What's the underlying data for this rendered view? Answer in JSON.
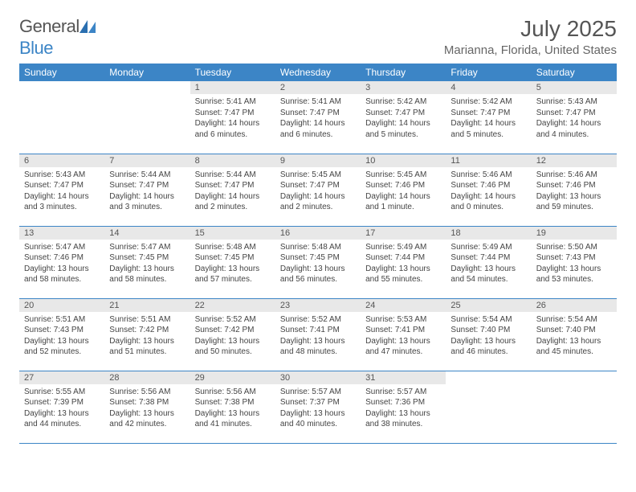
{
  "brand": {
    "part1": "General",
    "part2": "Blue"
  },
  "title": "July 2025",
  "location": "Marianna, Florida, United States",
  "colors": {
    "header_bg": "#3c85c6",
    "daynum_bg": "#e8e8e8",
    "text": "#444",
    "title": "#555"
  },
  "typography": {
    "title_fontsize": 28,
    "location_fontsize": 15,
    "dayheader_fontsize": 12,
    "body_fontsize": 10
  },
  "layout": {
    "columns": 7,
    "rows": 5
  },
  "day_labels": [
    "Sunday",
    "Monday",
    "Tuesday",
    "Wednesday",
    "Thursday",
    "Friday",
    "Saturday"
  ],
  "weeks": [
    [
      null,
      null,
      {
        "n": "1",
        "sunrise": "Sunrise: 5:41 AM",
        "sunset": "Sunset: 7:47 PM",
        "daylight": "Daylight: 14 hours and 6 minutes."
      },
      {
        "n": "2",
        "sunrise": "Sunrise: 5:41 AM",
        "sunset": "Sunset: 7:47 PM",
        "daylight": "Daylight: 14 hours and 6 minutes."
      },
      {
        "n": "3",
        "sunrise": "Sunrise: 5:42 AM",
        "sunset": "Sunset: 7:47 PM",
        "daylight": "Daylight: 14 hours and 5 minutes."
      },
      {
        "n": "4",
        "sunrise": "Sunrise: 5:42 AM",
        "sunset": "Sunset: 7:47 PM",
        "daylight": "Daylight: 14 hours and 5 minutes."
      },
      {
        "n": "5",
        "sunrise": "Sunrise: 5:43 AM",
        "sunset": "Sunset: 7:47 PM",
        "daylight": "Daylight: 14 hours and 4 minutes."
      }
    ],
    [
      {
        "n": "6",
        "sunrise": "Sunrise: 5:43 AM",
        "sunset": "Sunset: 7:47 PM",
        "daylight": "Daylight: 14 hours and 3 minutes."
      },
      {
        "n": "7",
        "sunrise": "Sunrise: 5:44 AM",
        "sunset": "Sunset: 7:47 PM",
        "daylight": "Daylight: 14 hours and 3 minutes."
      },
      {
        "n": "8",
        "sunrise": "Sunrise: 5:44 AM",
        "sunset": "Sunset: 7:47 PM",
        "daylight": "Daylight: 14 hours and 2 minutes."
      },
      {
        "n": "9",
        "sunrise": "Sunrise: 5:45 AM",
        "sunset": "Sunset: 7:47 PM",
        "daylight": "Daylight: 14 hours and 2 minutes."
      },
      {
        "n": "10",
        "sunrise": "Sunrise: 5:45 AM",
        "sunset": "Sunset: 7:46 PM",
        "daylight": "Daylight: 14 hours and 1 minute."
      },
      {
        "n": "11",
        "sunrise": "Sunrise: 5:46 AM",
        "sunset": "Sunset: 7:46 PM",
        "daylight": "Daylight: 14 hours and 0 minutes."
      },
      {
        "n": "12",
        "sunrise": "Sunrise: 5:46 AM",
        "sunset": "Sunset: 7:46 PM",
        "daylight": "Daylight: 13 hours and 59 minutes."
      }
    ],
    [
      {
        "n": "13",
        "sunrise": "Sunrise: 5:47 AM",
        "sunset": "Sunset: 7:46 PM",
        "daylight": "Daylight: 13 hours and 58 minutes."
      },
      {
        "n": "14",
        "sunrise": "Sunrise: 5:47 AM",
        "sunset": "Sunset: 7:45 PM",
        "daylight": "Daylight: 13 hours and 58 minutes."
      },
      {
        "n": "15",
        "sunrise": "Sunrise: 5:48 AM",
        "sunset": "Sunset: 7:45 PM",
        "daylight": "Daylight: 13 hours and 57 minutes."
      },
      {
        "n": "16",
        "sunrise": "Sunrise: 5:48 AM",
        "sunset": "Sunset: 7:45 PM",
        "daylight": "Daylight: 13 hours and 56 minutes."
      },
      {
        "n": "17",
        "sunrise": "Sunrise: 5:49 AM",
        "sunset": "Sunset: 7:44 PM",
        "daylight": "Daylight: 13 hours and 55 minutes."
      },
      {
        "n": "18",
        "sunrise": "Sunrise: 5:49 AM",
        "sunset": "Sunset: 7:44 PM",
        "daylight": "Daylight: 13 hours and 54 minutes."
      },
      {
        "n": "19",
        "sunrise": "Sunrise: 5:50 AM",
        "sunset": "Sunset: 7:43 PM",
        "daylight": "Daylight: 13 hours and 53 minutes."
      }
    ],
    [
      {
        "n": "20",
        "sunrise": "Sunrise: 5:51 AM",
        "sunset": "Sunset: 7:43 PM",
        "daylight": "Daylight: 13 hours and 52 minutes."
      },
      {
        "n": "21",
        "sunrise": "Sunrise: 5:51 AM",
        "sunset": "Sunset: 7:42 PM",
        "daylight": "Daylight: 13 hours and 51 minutes."
      },
      {
        "n": "22",
        "sunrise": "Sunrise: 5:52 AM",
        "sunset": "Sunset: 7:42 PM",
        "daylight": "Daylight: 13 hours and 50 minutes."
      },
      {
        "n": "23",
        "sunrise": "Sunrise: 5:52 AM",
        "sunset": "Sunset: 7:41 PM",
        "daylight": "Daylight: 13 hours and 48 minutes."
      },
      {
        "n": "24",
        "sunrise": "Sunrise: 5:53 AM",
        "sunset": "Sunset: 7:41 PM",
        "daylight": "Daylight: 13 hours and 47 minutes."
      },
      {
        "n": "25",
        "sunrise": "Sunrise: 5:54 AM",
        "sunset": "Sunset: 7:40 PM",
        "daylight": "Daylight: 13 hours and 46 minutes."
      },
      {
        "n": "26",
        "sunrise": "Sunrise: 5:54 AM",
        "sunset": "Sunset: 7:40 PM",
        "daylight": "Daylight: 13 hours and 45 minutes."
      }
    ],
    [
      {
        "n": "27",
        "sunrise": "Sunrise: 5:55 AM",
        "sunset": "Sunset: 7:39 PM",
        "daylight": "Daylight: 13 hours and 44 minutes."
      },
      {
        "n": "28",
        "sunrise": "Sunrise: 5:56 AM",
        "sunset": "Sunset: 7:38 PM",
        "daylight": "Daylight: 13 hours and 42 minutes."
      },
      {
        "n": "29",
        "sunrise": "Sunrise: 5:56 AM",
        "sunset": "Sunset: 7:38 PM",
        "daylight": "Daylight: 13 hours and 41 minutes."
      },
      {
        "n": "30",
        "sunrise": "Sunrise: 5:57 AM",
        "sunset": "Sunset: 7:37 PM",
        "daylight": "Daylight: 13 hours and 40 minutes."
      },
      {
        "n": "31",
        "sunrise": "Sunrise: 5:57 AM",
        "sunset": "Sunset: 7:36 PM",
        "daylight": "Daylight: 13 hours and 38 minutes."
      },
      null,
      null
    ]
  ]
}
